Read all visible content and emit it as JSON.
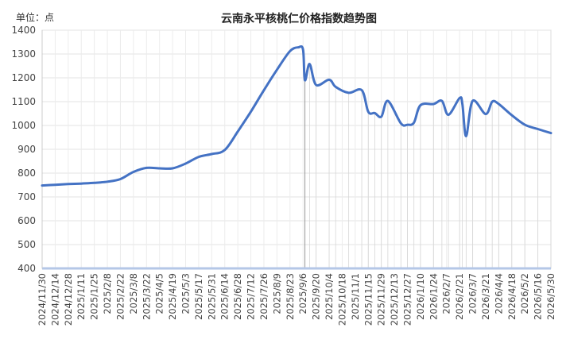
{
  "chart_data": {
    "type": "line",
    "title": "云南永平核桃仁价格指数趋势图",
    "unit_label": "单位：点",
    "ylim": [
      400,
      1400
    ],
    "y_ticks": [
      400,
      500,
      600,
      700,
      800,
      900,
      1000,
      1100,
      1200,
      1300,
      1400
    ],
    "x_tick_labels": [
      "2024/11/30",
      "2024/12/14",
      "2024/12/28",
      "2025/1/11",
      "2025/1/25",
      "2025/2/8",
      "2025/2/22",
      "2025/3/8",
      "2025/3/22",
      "2025/4/5",
      "2025/4/19",
      "2025/5/3",
      "2025/5/17",
      "2025/5/31",
      "2025/6/14",
      "2025/6/28",
      "2025/7/12",
      "2025/7/26",
      "2025/8/9",
      "2025/8/23",
      "2025/9/6",
      "2025/9/20",
      "2025/10/4",
      "2025/10/18",
      "2025/11/1",
      "2025/11/15",
      "2025/11/29",
      "2025/12/13",
      "2025/12/27",
      "2026/1/10",
      "2026/1/24",
      "2026/2/7",
      "2026/2/21",
      "2026/3/7",
      "2026/3/21",
      "2026/4/4",
      "2026/4/18",
      "2026/5/2",
      "2026/5/16",
      "2026/5/30"
    ],
    "grid": true,
    "line_color": "#4472c4",
    "series": [
      {
        "values": [
          [
            "2024/11/30",
            748
          ],
          [
            "2024/12/14",
            751
          ],
          [
            "2024/12/28",
            754
          ],
          [
            "2025/1/11",
            756
          ],
          [
            "2025/1/25",
            759
          ],
          [
            "2025/2/8",
            764
          ],
          [
            "2025/2/22",
            775
          ],
          [
            "2025/3/8",
            805
          ],
          [
            "2025/3/22",
            822
          ],
          [
            "2025/4/5",
            820
          ],
          [
            "2025/4/19",
            820
          ],
          [
            "2025/5/3",
            840
          ],
          [
            "2025/5/17",
            868
          ],
          [
            "2025/5/31",
            880
          ],
          [
            "2025/6/14",
            897
          ],
          [
            "2025/6/28",
            975
          ],
          [
            "2025/7/12",
            1058
          ],
          [
            "2025/7/26",
            1148
          ],
          [
            "2025/8/9",
            1234
          ],
          [
            "2025/8/23",
            1312
          ],
          [
            "2025/9/1",
            1328
          ],
          [
            "2025/9/6",
            1318
          ],
          [
            "2025/9/8",
            1190
          ],
          [
            "2025/9/13",
            1258
          ],
          [
            "2025/9/20",
            1170
          ],
          [
            "2025/10/4",
            1192
          ],
          [
            "2025/10/11",
            1162
          ],
          [
            "2025/10/25",
            1137
          ],
          [
            "2025/11/8",
            1148
          ],
          [
            "2025/11/15",
            1057
          ],
          [
            "2025/11/22",
            1052
          ],
          [
            "2025/11/29",
            1037
          ],
          [
            "2025/12/6",
            1103
          ],
          [
            "2025/12/20",
            1009
          ],
          [
            "2025/12/27",
            1003
          ],
          [
            "2026/1/3",
            1012
          ],
          [
            "2026/1/10",
            1085
          ],
          [
            "2026/1/24",
            1090
          ],
          [
            "2026/2/2",
            1103
          ],
          [
            "2026/2/9",
            1045
          ],
          [
            "2026/2/21",
            1115
          ],
          [
            "2026/2/24",
            1090
          ],
          [
            "2026/2/28",
            955
          ],
          [
            "2026/3/7",
            1103
          ],
          [
            "2026/3/21",
            1048
          ],
          [
            "2026/3/28",
            1100
          ],
          [
            "2026/4/4",
            1090
          ],
          [
            "2026/4/18",
            1043
          ],
          [
            "2026/5/2",
            1003
          ],
          [
            "2026/5/16",
            985
          ],
          [
            "2026/5/30",
            968
          ]
        ]
      }
    ]
  }
}
